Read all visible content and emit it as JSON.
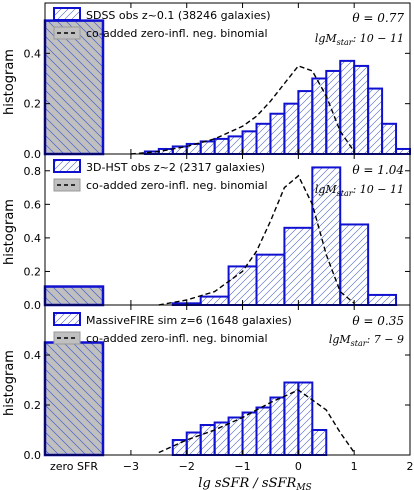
{
  "chart_data": [
    {
      "type": "bar",
      "ylabel": "histogram",
      "ylim": [
        0,
        0.6
      ],
      "yticks": [
        "0.0",
        "0.2",
        "0.4"
      ],
      "legend": {
        "position": "top-left",
        "entries": [
          {
            "label": "SDSS obs z~0.1 (38246 galaxies)",
            "kind": "hist"
          },
          {
            "label": "co-added zero-infl. neg. binomial",
            "kind": "model"
          }
        ]
      },
      "annotation_theta": "θ = 0.77",
      "annotation_mass": "lgM",
      "annotation_mass_sub": "star",
      "annotation_mass_range": ": 10 − 11",
      "zero_sfr_value": 0.53,
      "bins": {
        "start": -3.0,
        "width": 0.25,
        "values": [
          0,
          0.01,
          0.02,
          0.03,
          0.04,
          0.05,
          0.06,
          0.07,
          0.09,
          0.12,
          0.16,
          0.2,
          0.25,
          0.3,
          0.33,
          0.37,
          0.35,
          0.26,
          0.12,
          0.02
        ]
      },
      "curve": {
        "x": [
          -3.0,
          -2.5,
          -2.0,
          -1.5,
          -1.0,
          -0.75,
          -0.5,
          -0.25,
          0.0,
          0.25,
          0.5,
          0.75,
          1.0
        ],
        "y": [
          0.0,
          0.01,
          0.03,
          0.06,
          0.11,
          0.15,
          0.21,
          0.28,
          0.35,
          0.33,
          0.23,
          0.09,
          0.01
        ]
      }
    },
    {
      "type": "bar",
      "ylabel": "histogram",
      "ylim": [
        0,
        0.9
      ],
      "yticks": [
        "0.0",
        "0.2",
        "0.4",
        "0.6",
        "0.8"
      ],
      "legend": {
        "position": "top-left",
        "entries": [
          {
            "label": "3D-HST obs z~2 (2317 galaxies)",
            "kind": "hist"
          },
          {
            "label": "co-added zero-infl. neg. binomial",
            "kind": "model"
          }
        ]
      },
      "annotation_theta": "θ = 1.04",
      "annotation_mass": "lgM",
      "annotation_mass_sub": "star",
      "annotation_mass_range": ": 10 − 11",
      "zero_sfr_value": 0.11,
      "bins": {
        "start": -2.25,
        "width": 0.5,
        "values": [
          0.01,
          0.05,
          0.23,
          0.3,
          0.46,
          0.82,
          0.48,
          0.06
        ]
      },
      "curve": {
        "x": [
          -2.5,
          -2.0,
          -1.5,
          -1.0,
          -0.75,
          -0.5,
          -0.25,
          0.0,
          0.25,
          0.5,
          0.75,
          1.0
        ],
        "y": [
          0.0,
          0.03,
          0.08,
          0.2,
          0.32,
          0.5,
          0.7,
          0.77,
          0.6,
          0.3,
          0.08,
          0.01
        ]
      }
    },
    {
      "type": "bar",
      "ylabel": "histogram",
      "ylim": [
        0,
        0.6
      ],
      "yticks": [
        "0.0",
        "0.2",
        "0.4"
      ],
      "legend": {
        "position": "top-left",
        "entries": [
          {
            "label": "MassiveFIRE sim z=6 (1648 galaxies)",
            "kind": "hist"
          },
          {
            "label": "co-added zero-infl. neg. binomial",
            "kind": "model"
          }
        ]
      },
      "annotation_theta": "θ = 0.35",
      "annotation_mass": "lgM",
      "annotation_mass_sub": "star",
      "annotation_mass_range": ": 7 − 9",
      "zero_sfr_value": 0.45,
      "bins": {
        "start": -2.25,
        "width": 0.25,
        "values": [
          0.06,
          0.09,
          0.12,
          0.13,
          0.15,
          0.17,
          0.19,
          0.23,
          0.29,
          0.29,
          0.1
        ]
      },
      "curve": {
        "x": [
          -2.5,
          -2.0,
          -1.5,
          -1.0,
          -0.5,
          0.0,
          0.5,
          0.75,
          1.0
        ],
        "y": [
          0.01,
          0.06,
          0.1,
          0.15,
          0.21,
          0.26,
          0.18,
          0.09,
          0.01
        ]
      }
    }
  ],
  "xaxis": {
    "label": "lg sSFR / sSFR",
    "label_sub": "MS",
    "zero_label": "zero SFR",
    "ticks": [
      "−3",
      "−2",
      "−1",
      "0",
      "1",
      "2"
    ]
  },
  "colors": {
    "bar_edge": "#1010d0",
    "hatch": "#4a62c8",
    "zero_fill": "#c0c0c0",
    "curve": "#000000"
  }
}
